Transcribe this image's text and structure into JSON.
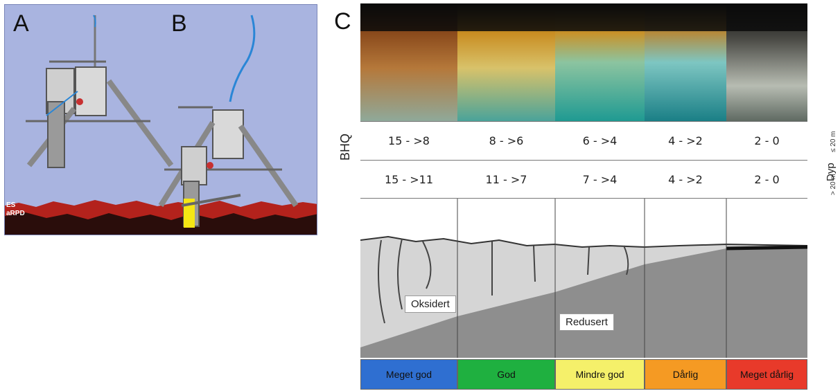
{
  "panel_letters": {
    "a": "A",
    "b": "B",
    "c": "C"
  },
  "sediment_labels": {
    "line1": "ES",
    "line2": "aRPD"
  },
  "bhq_label": "BHQ",
  "depth_label": "Dyp",
  "depth_ticks": {
    "upper": "≤ 20 m",
    "lower": "> 20 m"
  },
  "bhq_rows": [
    [
      "15 - >8",
      "8 - >6",
      "6 - >4",
      "4 - >2",
      "2 - 0"
    ],
    [
      "15 - >11",
      "11 - >7",
      "7 - >4",
      "4 - >2",
      "2 - 0"
    ]
  ],
  "zone_labels": {
    "oxidized": "Oksidert",
    "reduced": "Redusert"
  },
  "classes": [
    {
      "label": "Meget god",
      "color": "#2f6fd1"
    },
    {
      "label": "God",
      "color": "#1fb040"
    },
    {
      "label": "Mindre god",
      "color": "#f5f06a"
    },
    {
      "label": "Dårlig",
      "color": "#f59a23"
    },
    {
      "label": "Meget dårlig",
      "color": "#e83a2a"
    }
  ]
}
